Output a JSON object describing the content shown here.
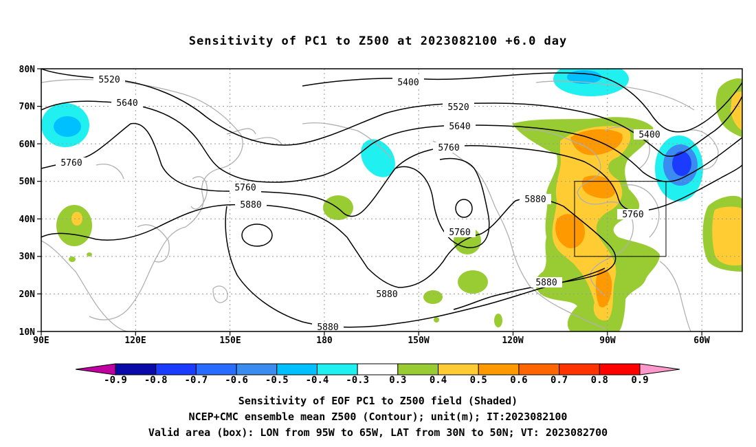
{
  "title": "Sensitivity of PC1 to Z500 at 2023082100 +6.0 day",
  "lat_labels": [
    "80N",
    "70N",
    "60N",
    "50N",
    "40N",
    "30N",
    "20N",
    "10N"
  ],
  "lon_labels": [
    "90E",
    "120E",
    "150E",
    "180",
    "150W",
    "120W",
    "90W",
    "60W"
  ],
  "contour_labels": {
    "c5520a": "5520",
    "c5640a": "5640",
    "c5400a": "5400",
    "c5520b": "5520",
    "c5640b": "5640",
    "c5760a": "5760",
    "c5400b": "5400",
    "c5760b": "5760",
    "c5880a": "5880",
    "c5760c": "5760",
    "c5880b": "5880",
    "c5760d": "5760",
    "c5760e": "5760",
    "c5880c": "5880",
    "c5880d": "5880",
    "c5880e": "5880"
  },
  "colorbar": {
    "labels": [
      "-0.9",
      "-0.8",
      "-0.7",
      "-0.6",
      "-0.5",
      "-0.4",
      "-0.3",
      "0.3",
      "0.4",
      "0.5",
      "0.6",
      "0.7",
      "0.8",
      "0.9"
    ],
    "colors": [
      "#0a0aa8",
      "#1b3cff",
      "#2a6cff",
      "#3a8cf0",
      "#00c0ff",
      "#20f0f0",
      "#ffffff",
      "#99cc33",
      "#ffcc33",
      "#ff9900",
      "#ff6600",
      "#ff3300",
      "#ff0000"
    ],
    "low_end_color": "#c000a0",
    "high_end_color": "#ff99cc"
  },
  "captions": {
    "line1": "Sensitivity of EOF PC1 to Z500 field (Shaded)",
    "line2": "NCEP+CMC ensemble mean Z500 (Contour); unit(m); IT:2023082100",
    "line3": "Valid area (box): LON from 95W to 65W, LAT from 30N to 50N; VT: 2023082700"
  }
}
